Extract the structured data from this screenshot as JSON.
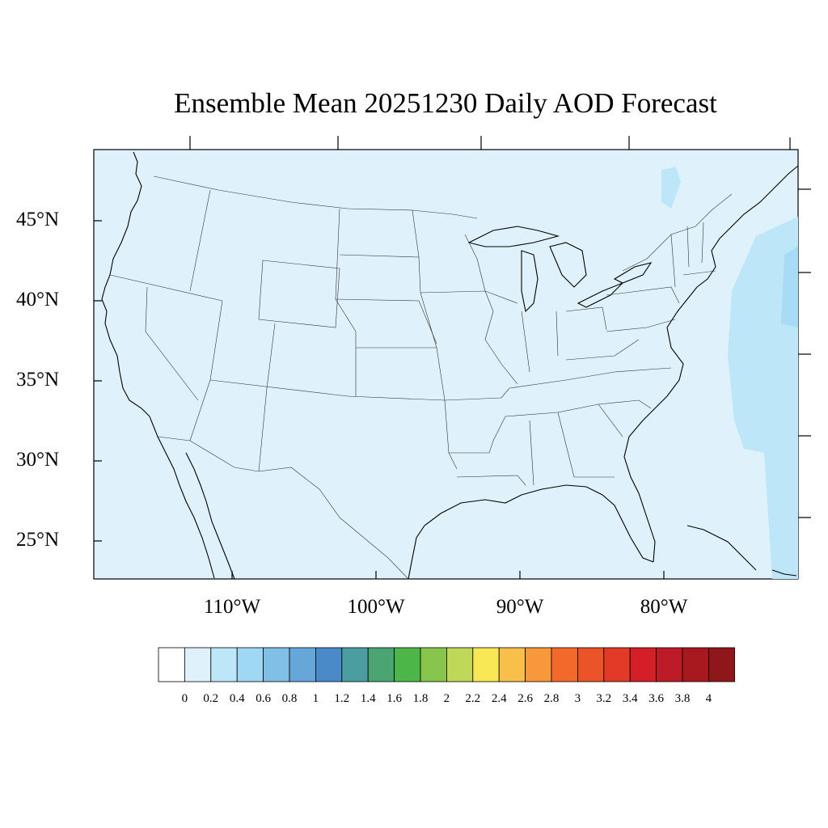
{
  "title": "Ensemble Mean 20251230 Daily AOD Forecast",
  "map": {
    "region": "Contiguous United States",
    "background_color": "#dff2fb",
    "lat_labels": [
      "45°N",
      "40°N",
      "35°N",
      "30°N",
      "25°N"
    ],
    "lon_labels": [
      "110°W",
      "100°W",
      "90°W",
      "80°W"
    ]
  },
  "colorbar": {
    "colors": [
      "#ffffff",
      "#dff2fb",
      "#bde6f8",
      "#9fd8f5",
      "#82bfe6",
      "#66a7da",
      "#4a8ac8",
      "#4a9ea0",
      "#4aa573",
      "#4db648",
      "#87c54c",
      "#c0d85a",
      "#f9e855",
      "#f8bf4a",
      "#f6983b",
      "#f2692b",
      "#ea5428",
      "#e13a27",
      "#d51f28",
      "#bc1b27",
      "#a8191f",
      "#8f161a"
    ],
    "labels": [
      "0",
      "0.2",
      "0.4",
      "0.6",
      "0.8",
      "1",
      "1.2",
      "1.4",
      "1.6",
      "1.8",
      "2",
      "2.2",
      "2.4",
      "2.6",
      "2.8",
      "3",
      "3.2",
      "3.4",
      "3.6",
      "3.8",
      "4"
    ]
  }
}
